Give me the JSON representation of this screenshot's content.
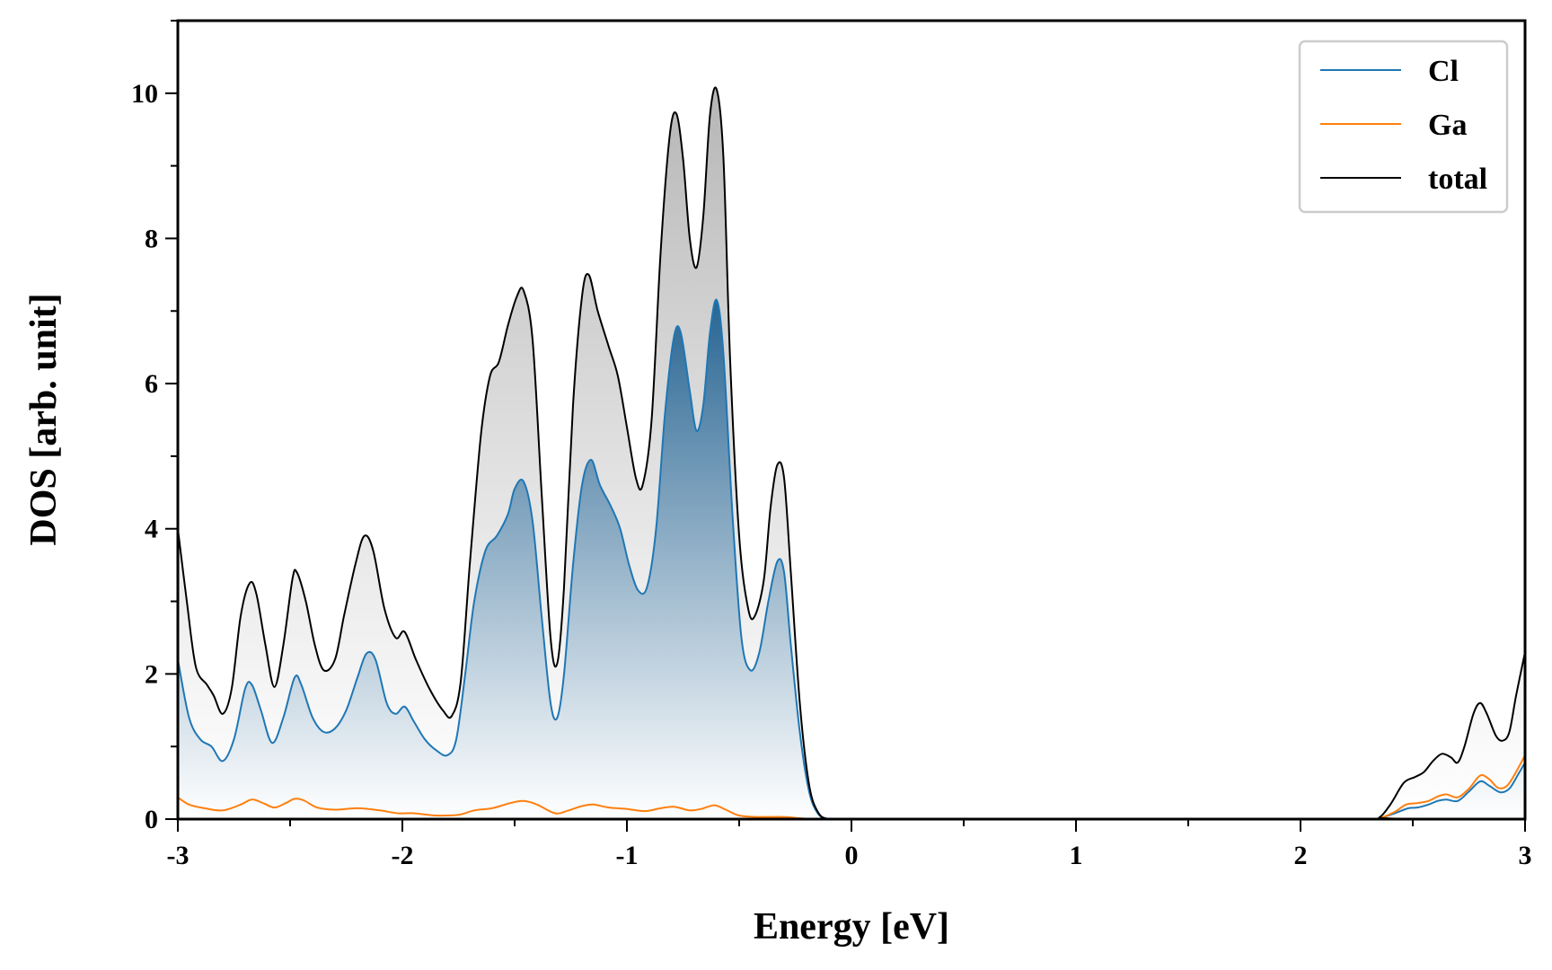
{
  "chart_data": {
    "type": "line",
    "title": "",
    "xlabel": "Energy [eV]",
    "ylabel": "DOS [arb. unit]",
    "xlim": [
      -3,
      3
    ],
    "ylim": [
      0,
      11
    ],
    "xticks": [
      -3,
      -2,
      -1,
      0,
      1,
      2,
      3
    ],
    "yticks": [
      0,
      2,
      4,
      6,
      8,
      10
    ],
    "grid": false,
    "legend_position": "top-right",
    "series": [
      {
        "name": "Cl",
        "color": "#1f77b4",
        "fill": "gradient",
        "points": [
          [
            -3.0,
            2.2
          ],
          [
            -2.95,
            1.4
          ],
          [
            -2.9,
            1.1
          ],
          [
            -2.85,
            1.0
          ],
          [
            -2.8,
            0.8
          ],
          [
            -2.75,
            1.1
          ],
          [
            -2.7,
            1.8
          ],
          [
            -2.67,
            1.85
          ],
          [
            -2.63,
            1.5
          ],
          [
            -2.58,
            1.05
          ],
          [
            -2.53,
            1.4
          ],
          [
            -2.48,
            1.95
          ],
          [
            -2.45,
            1.85
          ],
          [
            -2.4,
            1.4
          ],
          [
            -2.35,
            1.2
          ],
          [
            -2.3,
            1.25
          ],
          [
            -2.25,
            1.5
          ],
          [
            -2.2,
            1.95
          ],
          [
            -2.16,
            2.28
          ],
          [
            -2.12,
            2.2
          ],
          [
            -2.07,
            1.6
          ],
          [
            -2.03,
            1.45
          ],
          [
            -1.99,
            1.55
          ],
          [
            -1.95,
            1.35
          ],
          [
            -1.9,
            1.1
          ],
          [
            -1.85,
            0.95
          ],
          [
            -1.8,
            0.88
          ],
          [
            -1.76,
            1.1
          ],
          [
            -1.72,
            2.0
          ],
          [
            -1.68,
            3.0
          ],
          [
            -1.63,
            3.7
          ],
          [
            -1.58,
            3.9
          ],
          [
            -1.53,
            4.2
          ],
          [
            -1.5,
            4.55
          ],
          [
            -1.46,
            4.65
          ],
          [
            -1.42,
            4.1
          ],
          [
            -1.38,
            2.8
          ],
          [
            -1.34,
            1.6
          ],
          [
            -1.31,
            1.4
          ],
          [
            -1.28,
            2.0
          ],
          [
            -1.24,
            3.5
          ],
          [
            -1.2,
            4.6
          ],
          [
            -1.16,
            4.95
          ],
          [
            -1.12,
            4.6
          ],
          [
            -1.07,
            4.3
          ],
          [
            -1.03,
            4.0
          ],
          [
            -0.99,
            3.5
          ],
          [
            -0.95,
            3.15
          ],
          [
            -0.91,
            3.2
          ],
          [
            -0.87,
            4.0
          ],
          [
            -0.83,
            5.6
          ],
          [
            -0.79,
            6.65
          ],
          [
            -0.76,
            6.7
          ],
          [
            -0.72,
            5.9
          ],
          [
            -0.69,
            5.35
          ],
          [
            -0.66,
            5.7
          ],
          [
            -0.63,
            6.7
          ],
          [
            -0.6,
            7.15
          ],
          [
            -0.57,
            6.4
          ],
          [
            -0.53,
            4.2
          ],
          [
            -0.49,
            2.5
          ],
          [
            -0.45,
            2.05
          ],
          [
            -0.41,
            2.3
          ],
          [
            -0.37,
            3.0
          ],
          [
            -0.33,
            3.55
          ],
          [
            -0.3,
            3.4
          ],
          [
            -0.27,
            2.4
          ],
          [
            -0.23,
            1.2
          ],
          [
            -0.19,
            0.4
          ],
          [
            -0.15,
            0.08
          ],
          [
            -0.1,
            0.0
          ],
          [
            0.0,
            0.0
          ],
          [
            2.3,
            0.0
          ],
          [
            2.35,
            0.01
          ],
          [
            2.42,
            0.08
          ],
          [
            2.48,
            0.15
          ],
          [
            2.52,
            0.16
          ],
          [
            2.57,
            0.2
          ],
          [
            2.61,
            0.25
          ],
          [
            2.65,
            0.27
          ],
          [
            2.7,
            0.25
          ],
          [
            2.75,
            0.38
          ],
          [
            2.8,
            0.52
          ],
          [
            2.84,
            0.46
          ],
          [
            2.89,
            0.37
          ],
          [
            2.93,
            0.42
          ],
          [
            2.97,
            0.62
          ],
          [
            3.0,
            0.78
          ]
        ]
      },
      {
        "name": "Ga",
        "color": "#ff7f0e",
        "fill": "none",
        "points": [
          [
            -3.0,
            0.3
          ],
          [
            -2.95,
            0.2
          ],
          [
            -2.88,
            0.15
          ],
          [
            -2.8,
            0.12
          ],
          [
            -2.72,
            0.2
          ],
          [
            -2.67,
            0.27
          ],
          [
            -2.62,
            0.22
          ],
          [
            -2.57,
            0.16
          ],
          [
            -2.52,
            0.22
          ],
          [
            -2.48,
            0.28
          ],
          [
            -2.44,
            0.26
          ],
          [
            -2.38,
            0.16
          ],
          [
            -2.3,
            0.13
          ],
          [
            -2.2,
            0.15
          ],
          [
            -2.1,
            0.12
          ],
          [
            -2.02,
            0.08
          ],
          [
            -1.95,
            0.08
          ],
          [
            -1.85,
            0.05
          ],
          [
            -1.75,
            0.06
          ],
          [
            -1.68,
            0.12
          ],
          [
            -1.6,
            0.15
          ],
          [
            -1.52,
            0.22
          ],
          [
            -1.46,
            0.25
          ],
          [
            -1.4,
            0.2
          ],
          [
            -1.32,
            0.08
          ],
          [
            -1.26,
            0.12
          ],
          [
            -1.2,
            0.18
          ],
          [
            -1.15,
            0.2
          ],
          [
            -1.08,
            0.16
          ],
          [
            -1.0,
            0.14
          ],
          [
            -0.92,
            0.11
          ],
          [
            -0.85,
            0.15
          ],
          [
            -0.79,
            0.17
          ],
          [
            -0.72,
            0.12
          ],
          [
            -0.67,
            0.14
          ],
          [
            -0.61,
            0.19
          ],
          [
            -0.56,
            0.13
          ],
          [
            -0.5,
            0.05
          ],
          [
            -0.42,
            0.03
          ],
          [
            -0.3,
            0.03
          ],
          [
            -0.22,
            0.01
          ],
          [
            -0.15,
            0.0
          ],
          [
            0.0,
            0.0
          ],
          [
            2.3,
            0.0
          ],
          [
            2.36,
            0.02
          ],
          [
            2.42,
            0.1
          ],
          [
            2.47,
            0.2
          ],
          [
            2.52,
            0.22
          ],
          [
            2.57,
            0.25
          ],
          [
            2.61,
            0.31
          ],
          [
            2.65,
            0.34
          ],
          [
            2.7,
            0.3
          ],
          [
            2.75,
            0.42
          ],
          [
            2.8,
            0.6
          ],
          [
            2.84,
            0.55
          ],
          [
            2.88,
            0.43
          ],
          [
            2.92,
            0.46
          ],
          [
            2.96,
            0.65
          ],
          [
            3.0,
            0.88
          ]
        ]
      },
      {
        "name": "total",
        "color": "#000000",
        "fill": "gradient",
        "points": [
          [
            -3.0,
            4.0
          ],
          [
            -2.96,
            3.0
          ],
          [
            -2.92,
            2.1
          ],
          [
            -2.87,
            1.85
          ],
          [
            -2.84,
            1.7
          ],
          [
            -2.8,
            1.45
          ],
          [
            -2.76,
            1.8
          ],
          [
            -2.72,
            2.8
          ],
          [
            -2.68,
            3.25
          ],
          [
            -2.65,
            3.1
          ],
          [
            -2.61,
            2.4
          ],
          [
            -2.57,
            1.82
          ],
          [
            -2.53,
            2.4
          ],
          [
            -2.49,
            3.3
          ],
          [
            -2.47,
            3.4
          ],
          [
            -2.43,
            3.0
          ],
          [
            -2.39,
            2.4
          ],
          [
            -2.35,
            2.05
          ],
          [
            -2.3,
            2.2
          ],
          [
            -2.26,
            2.8
          ],
          [
            -2.21,
            3.5
          ],
          [
            -2.17,
            3.9
          ],
          [
            -2.13,
            3.7
          ],
          [
            -2.08,
            2.9
          ],
          [
            -2.03,
            2.5
          ],
          [
            -1.99,
            2.58
          ],
          [
            -1.94,
            2.2
          ],
          [
            -1.88,
            1.8
          ],
          [
            -1.82,
            1.5
          ],
          [
            -1.78,
            1.42
          ],
          [
            -1.74,
            1.9
          ],
          [
            -1.7,
            3.5
          ],
          [
            -1.65,
            5.3
          ],
          [
            -1.61,
            6.1
          ],
          [
            -1.57,
            6.3
          ],
          [
            -1.53,
            6.8
          ],
          [
            -1.49,
            7.2
          ],
          [
            -1.46,
            7.28
          ],
          [
            -1.42,
            6.6
          ],
          [
            -1.38,
            4.5
          ],
          [
            -1.34,
            2.5
          ],
          [
            -1.31,
            2.15
          ],
          [
            -1.28,
            3.2
          ],
          [
            -1.24,
            5.7
          ],
          [
            -1.2,
            7.2
          ],
          [
            -1.17,
            7.5
          ],
          [
            -1.13,
            7.0
          ],
          [
            -1.08,
            6.5
          ],
          [
            -1.04,
            6.1
          ],
          [
            -1.0,
            5.4
          ],
          [
            -0.96,
            4.7
          ],
          [
            -0.93,
            4.6
          ],
          [
            -0.89,
            5.5
          ],
          [
            -0.85,
            7.8
          ],
          [
            -0.81,
            9.4
          ],
          [
            -0.78,
            9.72
          ],
          [
            -0.75,
            9.1
          ],
          [
            -0.72,
            8.0
          ],
          [
            -0.69,
            7.6
          ],
          [
            -0.66,
            8.3
          ],
          [
            -0.63,
            9.7
          ],
          [
            -0.6,
            10.05
          ],
          [
            -0.57,
            9.1
          ],
          [
            -0.54,
            6.3
          ],
          [
            -0.5,
            3.9
          ],
          [
            -0.46,
            2.9
          ],
          [
            -0.43,
            2.8
          ],
          [
            -0.39,
            3.3
          ],
          [
            -0.36,
            4.3
          ],
          [
            -0.33,
            4.88
          ],
          [
            -0.3,
            4.7
          ],
          [
            -0.27,
            3.4
          ],
          [
            -0.23,
            1.6
          ],
          [
            -0.19,
            0.5
          ],
          [
            -0.15,
            0.1
          ],
          [
            -0.1,
            0.0
          ],
          [
            0.0,
            0.0
          ],
          [
            2.3,
            0.0
          ],
          [
            2.35,
            0.02
          ],
          [
            2.4,
            0.2
          ],
          [
            2.46,
            0.5
          ],
          [
            2.51,
            0.58
          ],
          [
            2.55,
            0.65
          ],
          [
            2.59,
            0.8
          ],
          [
            2.63,
            0.9
          ],
          [
            2.67,
            0.85
          ],
          [
            2.7,
            0.78
          ],
          [
            2.73,
            1.0
          ],
          [
            2.77,
            1.45
          ],
          [
            2.8,
            1.6
          ],
          [
            2.83,
            1.45
          ],
          [
            2.87,
            1.15
          ],
          [
            2.9,
            1.08
          ],
          [
            2.93,
            1.2
          ],
          [
            2.96,
            1.7
          ],
          [
            3.0,
            2.3
          ]
        ]
      }
    ]
  }
}
